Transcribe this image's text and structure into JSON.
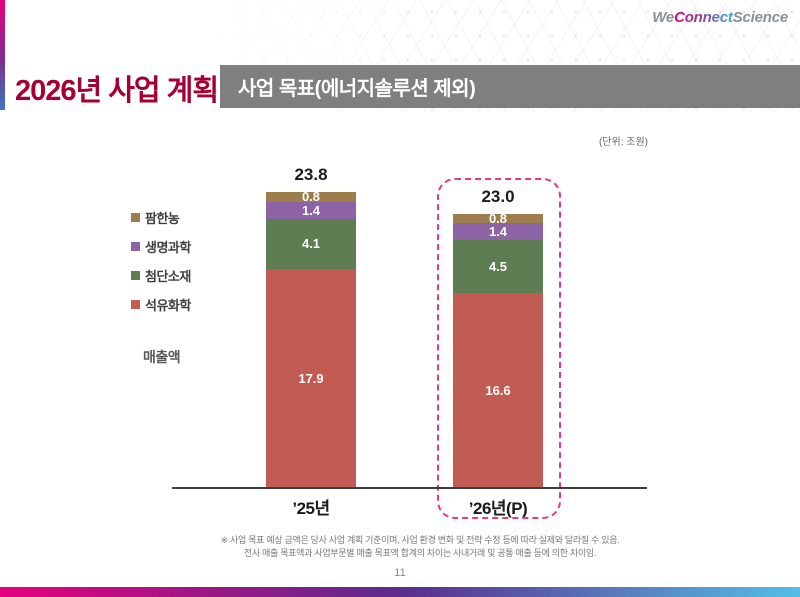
{
  "logo": {
    "part_we": "We",
    "part_connect": "Connect",
    "part_science": "Science"
  },
  "header": {
    "title": "2026년 사업 계획",
    "section_title": "사업 목표(에너지솔루션 제외)"
  },
  "unit_note": "(단위: 조원)",
  "chart_data": {
    "type": "bar",
    "stacked": true,
    "unit": "조원",
    "axis_caption": "매출액",
    "legend_position": "left",
    "grid": false,
    "legend": [
      {
        "label": "팜한농",
        "color": "#9C7D4B"
      },
      {
        "label": "생명과학",
        "color": "#8C63A5"
      },
      {
        "label": "첨단소재",
        "color": "#5E7D52"
      },
      {
        "label": "석유화학",
        "color": "#C25B54"
      }
    ],
    "categories": [
      "’25년",
      "’26년(P)"
    ],
    "bars": [
      {
        "category": "’25년",
        "total_label": "23.8",
        "highlighted": false,
        "segments": [
          {
            "name": "팜한농",
            "value": 0.8
          },
          {
            "name": "생명과학",
            "value": 1.4
          },
          {
            "name": "첨단소재",
            "value": 4.1
          },
          {
            "name": "석유화학",
            "value": 17.9
          }
        ]
      },
      {
        "category": "’26년(P)",
        "total_label": "23.0",
        "highlighted": true,
        "segments": [
          {
            "name": "팜한농",
            "value": 0.8
          },
          {
            "name": "생명과학",
            "value": 1.4
          },
          {
            "name": "첨단소재",
            "value": 4.5
          },
          {
            "name": "석유화학",
            "value": 16.6
          }
        ]
      }
    ],
    "highlight_color": "#E8368F"
  },
  "footnote": {
    "line1": "※ 사업 목표 예상 금액은 당사 사업 계획 기준이며, 사업 환경 변화 및 전략 수정 등에 따라 실제와 달라질 수 있음.",
    "line2": "전사 매출 목표액과 사업부문별 매출 목표액 합계의 차이는 사내거래 및 공통 매출 등에 의한 차이임.",
    "marker": "※"
  },
  "page_number": "11",
  "colors": {
    "title_accent": "#A50034",
    "section_bar": "#7F7F7F",
    "highlight_dashed": "#E8368F",
    "bottom_gradient_start": "#E6007E",
    "bottom_gradient_mid": "#5B2B8D",
    "bottom_gradient_end": "#55BEE6"
  }
}
